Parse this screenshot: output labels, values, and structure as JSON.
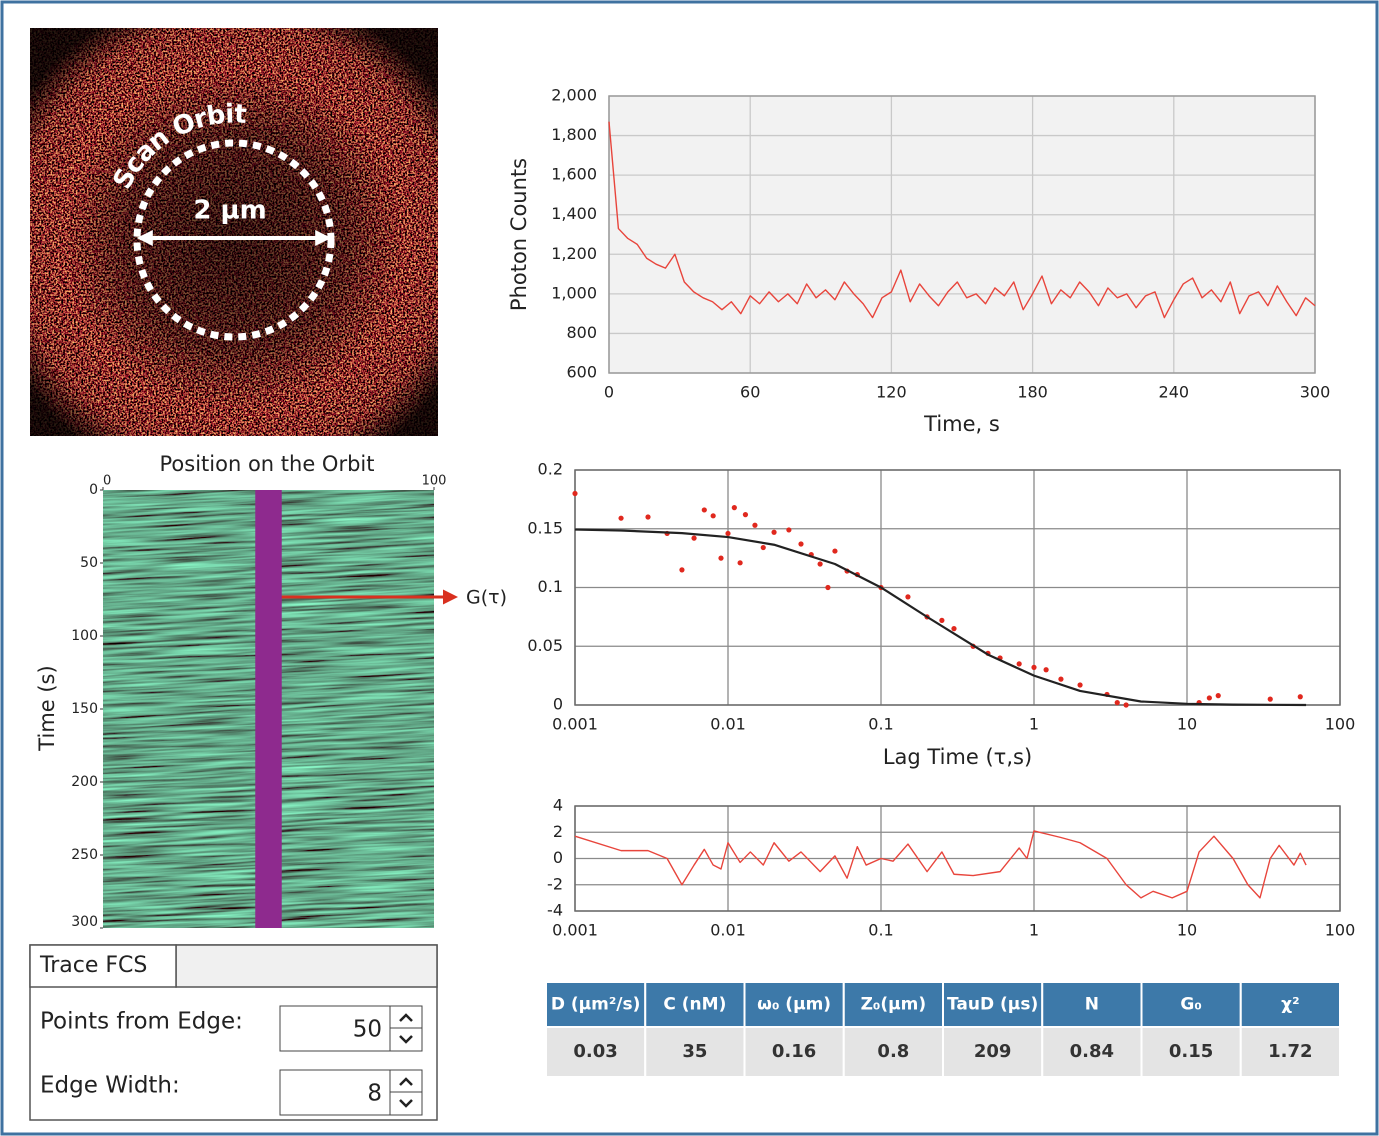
{
  "image": {
    "orbit_label": "Scan Orbit",
    "scale_label": "2 µm"
  },
  "kymograph": {
    "title": "Position on the Orbit",
    "ylabel": "Time (s)",
    "annotation": "G(τ)",
    "xlim": [
      0,
      100
    ],
    "xticks": [
      0,
      100
    ],
    "ylim": [
      0,
      300
    ],
    "yticks": [
      0,
      50,
      100,
      150,
      200,
      250,
      300
    ],
    "band": [
      46,
      54
    ],
    "band_color": "#8e2a8e"
  },
  "controls": {
    "tab": "Trace FCS",
    "fields": [
      {
        "label": "Points from Edge:",
        "value": 50
      },
      {
        "label": "Edge Width:",
        "value": 8
      }
    ]
  },
  "chart_data": [
    {
      "type": "line",
      "xlabel": "Time, s",
      "ylabel": "Photon Counts",
      "grid": true,
      "xlim": [
        0,
        300
      ],
      "xticks": [
        0,
        60,
        120,
        180,
        240,
        300
      ],
      "ylim": [
        600,
        2000
      ],
      "yticks": [
        600,
        800,
        {
          "value": 1000,
          "label": "1,000"
        },
        {
          "value": 1200,
          "label": "1,200"
        },
        {
          "value": 1400,
          "label": "1,400"
        },
        {
          "value": 1600,
          "label": "1,600"
        },
        {
          "value": 1800,
          "label": "1,800"
        },
        {
          "value": 2000,
          "label": "2,000"
        }
      ],
      "x": [
        0,
        4,
        8,
        12,
        16,
        20,
        24,
        28,
        32,
        36,
        40,
        44,
        48,
        52,
        56,
        60,
        64,
        68,
        72,
        76,
        80,
        84,
        88,
        92,
        96,
        100,
        104,
        108,
        112,
        116,
        120,
        124,
        128,
        132,
        136,
        140,
        144,
        148,
        152,
        156,
        160,
        164,
        168,
        172,
        176,
        180,
        184,
        188,
        192,
        196,
        200,
        204,
        208,
        212,
        216,
        220,
        224,
        228,
        232,
        236,
        240,
        244,
        248,
        252,
        256,
        260,
        264,
        268,
        272,
        276,
        280,
        284,
        288,
        292,
        296,
        300
      ],
      "series": [
        {
          "color": "#e8453c",
          "values": [
            1870,
            1330,
            1280,
            1250,
            1180,
            1150,
            1130,
            1200,
            1060,
            1010,
            980,
            960,
            920,
            960,
            900,
            990,
            950,
            1010,
            960,
            1000,
            950,
            1050,
            980,
            1020,
            970,
            1060,
            1000,
            950,
            880,
            980,
            1010,
            1120,
            960,
            1050,
            990,
            940,
            1010,
            1060,
            980,
            1000,
            950,
            1030,
            990,
            1060,
            920,
            1000,
            1090,
            950,
            1020,
            980,
            1060,
            1010,
            940,
            1030,
            980,
            1000,
            930,
            990,
            1010,
            880,
            970,
            1050,
            1080,
            980,
            1020,
            960,
            1060,
            900,
            990,
            1010,
            940,
            1040,
            960,
            890,
            980,
            940
          ]
        }
      ]
    },
    {
      "type": "scatter",
      "xlabel": "Lag Time (τ,s)",
      "xscale": "log",
      "grid": true,
      "xlim": [
        0.001,
        100
      ],
      "xticks": [
        0.001,
        0.01,
        0.1,
        1,
        10,
        100
      ],
      "ylim": [
        0,
        0.2
      ],
      "yticks": [
        0,
        0.05,
        0.1,
        0.15,
        0.2
      ],
      "series": [
        {
          "color": "#e0281e",
          "x": [
            0.001,
            0.002,
            0.003,
            0.004,
            0.005,
            0.006,
            0.007,
            0.008,
            0.009,
            0.01,
            0.011,
            0.012,
            0.013,
            0.015,
            0.017,
            0.02,
            0.025,
            0.03,
            0.035,
            0.04,
            0.045,
            0.05,
            0.06,
            0.07,
            0.1,
            0.15,
            0.2,
            0.25,
            0.3,
            0.4,
            0.5,
            0.6,
            0.8,
            1,
            1.2,
            1.5,
            2,
            3,
            3.5,
            4,
            12,
            14,
            16,
            35,
            55
          ],
          "values": [
            0.18,
            0.159,
            0.16,
            0.146,
            0.115,
            0.142,
            0.166,
            0.161,
            0.125,
            0.146,
            0.168,
            0.121,
            0.162,
            0.153,
            0.134,
            0.147,
            0.149,
            0.137,
            0.128,
            0.12,
            0.1,
            0.131,
            0.114,
            0.111,
            0.1,
            0.092,
            0.075,
            0.072,
            0.065,
            0.05,
            0.044,
            0.04,
            0.035,
            0.032,
            0.03,
            0.022,
            0.017,
            0.009,
            0.002,
            0,
            0.002,
            0.006,
            0.008,
            0.005,
            0.007
          ]
        },
        {
          "type": "line",
          "color": "#222222",
          "x": [
            0.001,
            0.002,
            0.005,
            0.01,
            0.02,
            0.05,
            0.1,
            0.2,
            0.5,
            1,
            2,
            5,
            10,
            20,
            60
          ],
          "values": [
            0.1493,
            0.1485,
            0.1463,
            0.1429,
            0.1364,
            0.12,
            0.1,
            0.075,
            0.0429,
            0.025,
            0.012,
            0.003,
            0.001,
            0.0003,
            0
          ]
        }
      ]
    },
    {
      "type": "line",
      "xscale": "log",
      "grid": true,
      "xlim": [
        0.001,
        100
      ],
      "xticks": [
        0.001,
        0.01,
        0.1,
        1,
        10,
        100
      ],
      "ylim": [
        -4,
        4
      ],
      "yticks": [
        -4,
        -2,
        0,
        2,
        4
      ],
      "x": [
        0.001,
        0.002,
        0.003,
        0.004,
        0.005,
        0.006,
        0.007,
        0.008,
        0.009,
        0.01,
        0.012,
        0.014,
        0.017,
        0.02,
        0.025,
        0.03,
        0.04,
        0.05,
        0.06,
        0.07,
        0.08,
        0.1,
        0.12,
        0.15,
        0.2,
        0.25,
        0.3,
        0.4,
        0.6,
        0.8,
        0.9,
        1,
        1.5,
        2,
        3,
        4,
        5,
        6,
        8,
        10,
        12,
        15,
        20,
        25,
        30,
        35,
        40,
        50,
        55,
        60
      ],
      "series": [
        {
          "color": "#e8453c",
          "values": [
            1.7,
            0.6,
            0.6,
            0,
            -2,
            -0.5,
            0.7,
            -0.5,
            -0.8,
            1.2,
            -0.3,
            0.5,
            -0.5,
            1.2,
            -0.2,
            0.5,
            -1,
            0.2,
            -1.5,
            0.9,
            -0.5,
            0,
            -0.2,
            1.1,
            -1,
            0.5,
            -1.2,
            -1.3,
            -1,
            0.8,
            0,
            2.1,
            1.6,
            1.2,
            0,
            -2,
            -3,
            -2.5,
            -3,
            -2.5,
            0.5,
            1.7,
            0,
            -2,
            -3,
            0,
            1,
            -0.5,
            0.4,
            -0.5
          ]
        }
      ]
    }
  ],
  "table": {
    "headers": [
      "D (µm²/s)",
      "C (nM)",
      "ω₀ (µm)",
      "Z₀(µm)",
      "TauD (µs)",
      "N",
      "G₀",
      "χ²"
    ],
    "rows": [
      [
        0.03,
        35,
        0.16,
        0.8,
        209,
        0.84,
        0.15,
        1.72
      ]
    ]
  }
}
